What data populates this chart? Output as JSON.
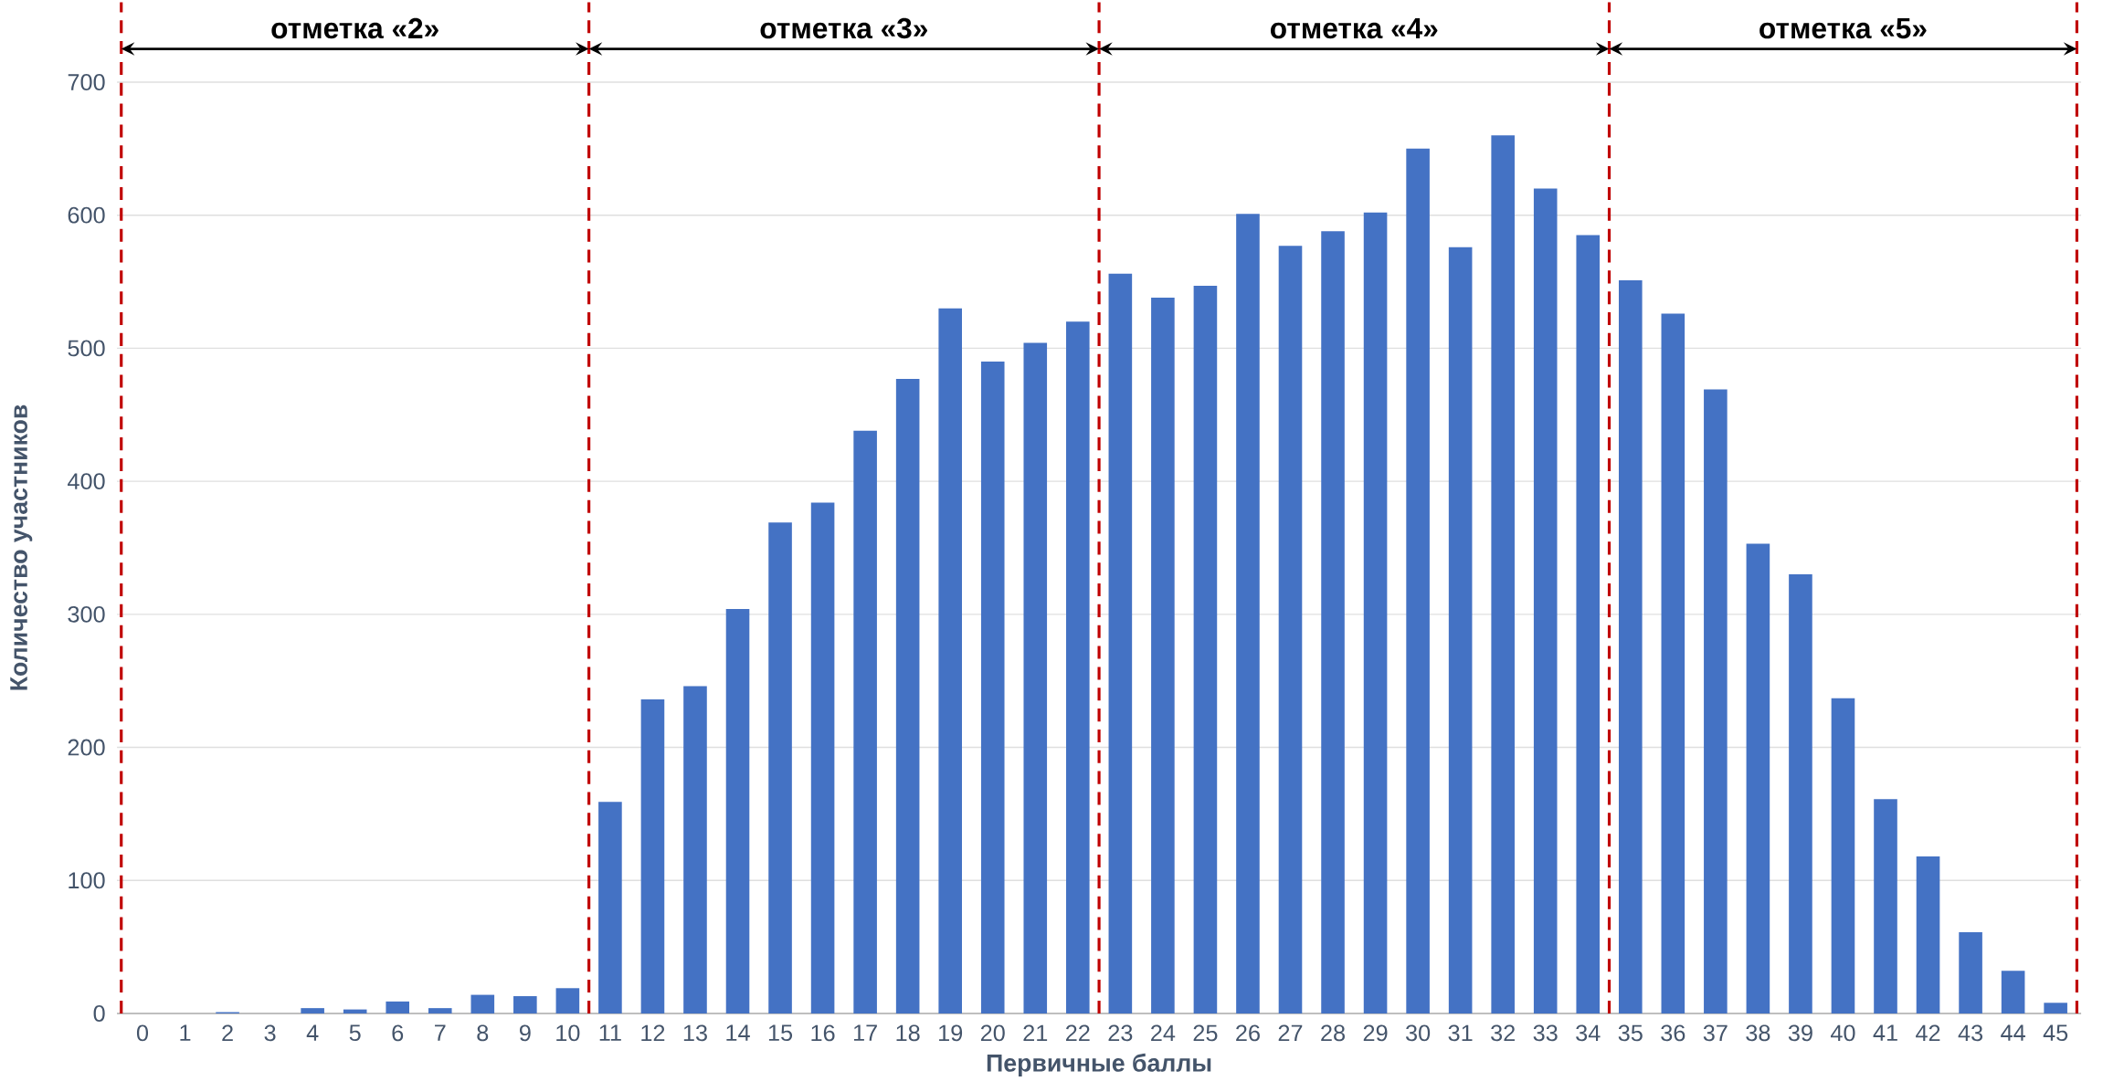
{
  "chart_data": {
    "type": "bar",
    "xlabel": "Первичные баллы",
    "ylabel": "Количество участников",
    "categories": [
      "0",
      "1",
      "2",
      "3",
      "4",
      "5",
      "6",
      "7",
      "8",
      "9",
      "10",
      "11",
      "12",
      "13",
      "14",
      "15",
      "16",
      "17",
      "18",
      "19",
      "20",
      "21",
      "22",
      "23",
      "24",
      "25",
      "26",
      "27",
      "28",
      "29",
      "30",
      "31",
      "32",
      "33",
      "34",
      "35",
      "36",
      "37",
      "38",
      "39",
      "40",
      "41",
      "42",
      "43",
      "44",
      "45"
    ],
    "values": [
      0,
      0,
      1,
      0,
      4,
      3,
      9,
      4,
      14,
      13,
      19,
      159,
      236,
      246,
      304,
      369,
      384,
      438,
      477,
      530,
      490,
      504,
      520,
      556,
      538,
      547,
      601,
      577,
      588,
      602,
      650,
      576,
      660,
      620,
      585,
      551,
      526,
      469,
      353,
      330,
      237,
      161,
      118,
      61,
      32,
      8
    ],
    "color": "#4472c4",
    "ylim": [
      0,
      700
    ],
    "yticks": [
      0,
      100,
      200,
      300,
      400,
      500,
      600,
      700
    ],
    "grid": "y",
    "annotations": [
      "отметка «2»",
      "отметка «3»",
      "отметка «4»",
      "отметка «5»"
    ]
  }
}
